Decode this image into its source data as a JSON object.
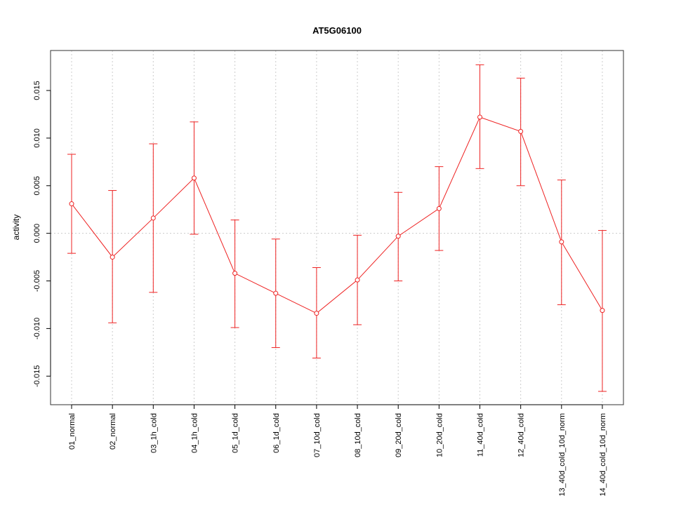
{
  "chart_data": {
    "type": "line",
    "title": "AT5G06100",
    "xlabel": "",
    "ylabel": "activity",
    "ylim": [
      -0.018,
      0.0192
    ],
    "yticks": [
      -0.015,
      -0.01,
      -0.005,
      0.0,
      0.005,
      0.01,
      0.015
    ],
    "ytick_labels": [
      "-0.015",
      "-0.010",
      "-0.005",
      "0.000",
      "0.005",
      "0.010",
      "0.015"
    ],
    "grid": true,
    "categories": [
      "01_normal",
      "02_normal",
      "03_1h_cold",
      "04_1h_cold",
      "05_1d_cold",
      "06_1d_cold",
      "07_10d_cold",
      "08_10d_cold",
      "09_20d_cold",
      "10_20d_cold",
      "11_40d_cold",
      "12_40d_cold",
      "13_40d_cold_10d_norm",
      "14_40d_cold_10d_norm"
    ],
    "series": [
      {
        "color": "#ee2222",
        "values": [
          0.0031,
          -0.0025,
          0.0016,
          0.0058,
          -0.0042,
          -0.0063,
          -0.0084,
          -0.0049,
          -0.0003,
          0.0026,
          0.0122,
          0.0107,
          -0.0009,
          -0.0081
        ],
        "upper": [
          0.0083,
          0.0045,
          0.0094,
          0.0117,
          0.0014,
          -0.0006,
          -0.0036,
          -0.0002,
          0.0043,
          0.007,
          0.0177,
          0.0163,
          0.0056,
          0.0003
        ],
        "lower": [
          -0.0021,
          -0.0094,
          -0.0062,
          -0.0001,
          -0.0099,
          -0.012,
          -0.0131,
          -0.0096,
          -0.005,
          -0.0018,
          0.0068,
          0.005,
          -0.0075,
          -0.0166
        ]
      }
    ]
  }
}
